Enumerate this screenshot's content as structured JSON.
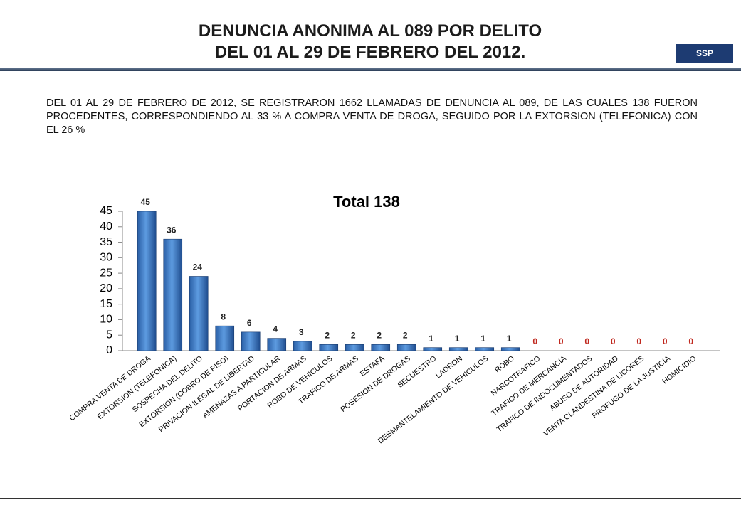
{
  "header": {
    "title": [
      "DENUNCIA ANONIMA AL 089 POR DELITO",
      "DEL 01 AL 29 DE FEBRERO  DEL 2012."
    ],
    "logo": "SSP"
  },
  "paragraph": "DEL 01 AL 29 DE FEBRERO DE 2012, SE REGISTRARON 1662 LLAMADAS DE DENUNCIA AL 089, DE LAS CUALES 138 FUERON PROCEDENTES, CORRESPONDIENDO AL 33 % A COMPRA VENTA DE DROGA, SEGUIDO POR LA EXTORSION (TELEFONICA) CON EL 26 %",
  "chart_data": {
    "type": "bar",
    "title": "Total 138",
    "categories": [
      "COMPRA VENTA DE DROGA",
      "EXTORSION (TELEFONICA)",
      "SOSPECHA DEL DELITO",
      "EXTORSION (COBRO DE PISO)",
      "PRIVACION ILEGAL DE LIBERTAD",
      "AMENAZAS A PARTICULAR",
      "PORTACION DE ARMAS",
      "ROBO DE VEHICULOS",
      "TRAFICO DE ARMAS",
      "ESTAFA",
      "POSESION DE DROGAS",
      "SECUESTRO",
      "LADRON",
      "DESMANTELAMIENTO DE VEHICULOS",
      "ROBO",
      "NARCOTRAFICO",
      "TRAFICO DE MERCANCIA",
      "TRAFICO DE INDOCUMENTADOS",
      "ABUSO DE AUTORIDAD",
      "VENTA CLANDESTINA DE LICORES",
      "PROFUGO DE LA JUSTICIA",
      "HOMICIDIO"
    ],
    "values": [
      45,
      36,
      24,
      8,
      6,
      4,
      3,
      2,
      2,
      2,
      2,
      1,
      1,
      1,
      1,
      0,
      0,
      0,
      0,
      0,
      0,
      0
    ],
    "color": "#3b79c6",
    "ylim": [
      0,
      45
    ],
    "yticks": [
      0,
      5,
      10,
      15,
      20,
      25,
      30,
      35,
      40,
      45
    ]
  }
}
